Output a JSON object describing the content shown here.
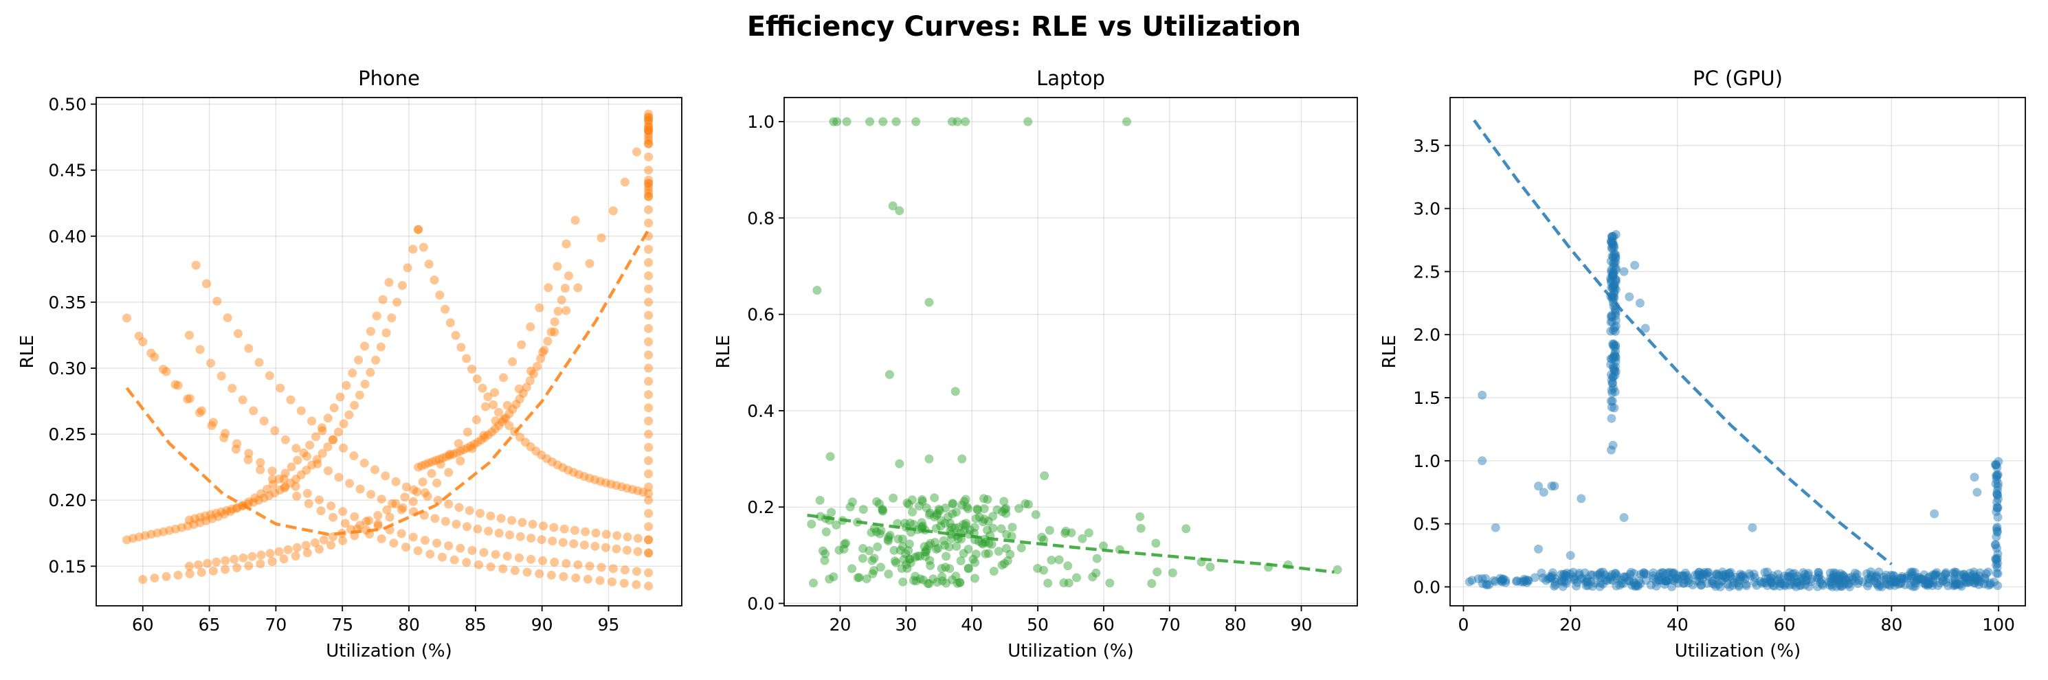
{
  "figure": {
    "title": "Efficiency Curves: RLE vs Utilization"
  },
  "chart_data": [
    {
      "type": "scatter",
      "title": "Phone",
      "xlabel": "Utilization (%)",
      "ylabel": "RLE",
      "xlim": [
        56.5,
        100.5
      ],
      "ylim": [
        0.12,
        0.505
      ],
      "xticks": [
        60,
        65,
        70,
        75,
        80,
        85,
        90,
        95
      ],
      "yticks": [
        0.15,
        0.2,
        0.25,
        0.3,
        0.35,
        0.4,
        0.45,
        0.5
      ],
      "ytick_decimals": 2,
      "grid": true,
      "color": "#ff7f0e",
      "point_alpha": 0.45,
      "series": [
        {
          "kind": "arc-families",
          "arcs": [
            {
              "x0": 58.8,
              "x1": 98.0,
              "ymax": 0.338,
              "ymin": 0.135
            },
            {
              "x0": 60.0,
              "x1": 98.0,
              "ymax": 0.32,
              "ymin": 0.145
            },
            {
              "x0": 63.5,
              "x1": 98.0,
              "ymax": 0.325,
              "ymin": 0.16
            },
            {
              "x0": 64.0,
              "x1": 98.0,
              "ymax": 0.378,
              "ymin": 0.17
            },
            {
              "x0": 78.5,
              "x1": 58.8,
              "ymax": 0.365,
              "ymin": 0.17
            },
            {
              "x0": 80.7,
              "x1": 63.5,
              "ymax": 0.405,
              "ymin": 0.185
            },
            {
              "x0": 80.7,
              "x1": 98.0,
              "ymax": 0.405,
              "ymin": 0.205
            },
            {
              "x0": 92.5,
              "x1": 63.5,
              "ymax": 0.412,
              "ymin": 0.15
            },
            {
              "x0": 92.0,
              "x1": 80.7,
              "ymax": 0.37,
              "ymin": 0.225
            },
            {
              "x0": 98.0,
              "x1": 60.0,
              "ymax": 0.488,
              "ymin": 0.14
            }
          ],
          "vertical_cluster": {
            "x": 98.0,
            "y_min": 0.16,
            "y_max": 0.49,
            "dense": [
              0.43,
              0.47,
              0.48
            ]
          }
        },
        {
          "kind": "fit",
          "style": "dashed",
          "x": [
            58.8,
            62,
            66,
            70,
            74,
            78,
            82,
            86,
            90,
            94,
            98
          ],
          "y": [
            0.285,
            0.243,
            0.205,
            0.182,
            0.174,
            0.178,
            0.196,
            0.228,
            0.275,
            0.335,
            0.405
          ]
        }
      ]
    },
    {
      "type": "scatter",
      "title": "Laptop",
      "xlabel": "Utilization (%)",
      "ylabel": "RLE",
      "xlim": [
        11.5,
        98.5
      ],
      "ylim": [
        -0.005,
        1.05
      ],
      "xticks": [
        20,
        30,
        40,
        50,
        60,
        70,
        80,
        90
      ],
      "yticks": [
        0.0,
        0.2,
        0.4,
        0.6,
        0.8,
        1.0
      ],
      "ytick_decimals": 1,
      "grid": true,
      "color": "#2ca02c",
      "point_alpha": 0.45,
      "series": [
        {
          "kind": "points",
          "outliers": [
            [
              19,
              1.0
            ],
            [
              19.5,
              1.0
            ],
            [
              21,
              1.0
            ],
            [
              24.5,
              1.0
            ],
            [
              26.5,
              1.0
            ],
            [
              28.5,
              1.0
            ],
            [
              31.5,
              1.0
            ],
            [
              37,
              1.0
            ],
            [
              37.8,
              1.0
            ],
            [
              39,
              1.0
            ],
            [
              48.5,
              1.0
            ],
            [
              63.5,
              1.0
            ],
            [
              28,
              0.825
            ],
            [
              29,
              0.815
            ],
            [
              16.5,
              0.65
            ],
            [
              33.5,
              0.625
            ],
            [
              27.5,
              0.475
            ],
            [
              37.5,
              0.44
            ],
            [
              18.5,
              0.305
            ],
            [
              29,
              0.29
            ],
            [
              33.5,
              0.3
            ],
            [
              38.5,
              0.3
            ],
            [
              51,
              0.265
            ],
            [
              65.5,
              0.18
            ],
            [
              72.5,
              0.155
            ],
            [
              85,
              0.075
            ],
            [
              88,
              0.08
            ],
            [
              95.5,
              0.07
            ]
          ],
          "cloud": {
            "x_min": 15,
            "x_max": 80,
            "x_center": 30,
            "y_min": 0.04,
            "y_max": 0.22
          }
        },
        {
          "kind": "fit",
          "style": "dashed",
          "x": [
            15,
            25,
            35,
            45,
            55,
            65,
            75,
            85,
            95
          ],
          "y": [
            0.183,
            0.165,
            0.147,
            0.131,
            0.117,
            0.104,
            0.092,
            0.081,
            0.065
          ]
        }
      ]
    },
    {
      "type": "scatter",
      "title": "PC (GPU)",
      "xlabel": "Utilization (%)",
      "ylabel": "RLE",
      "xlim": [
        -2.5,
        105
      ],
      "ylim": [
        -0.15,
        3.88
      ],
      "xticks": [
        0,
        20,
        40,
        60,
        80,
        100
      ],
      "yticks": [
        0.0,
        0.5,
        1.0,
        1.5,
        2.0,
        2.5,
        3.0,
        3.5
      ],
      "ytick_decimals": 1,
      "grid": true,
      "color": "#1f77b4",
      "point_alpha": 0.45,
      "series": [
        {
          "kind": "points",
          "outliers": [
            [
              3.5,
              1.52
            ],
            [
              3.5,
              1.0
            ],
            [
              6,
              0.47
            ],
            [
              14,
              0.8
            ],
            [
              15,
              0.75
            ],
            [
              16.5,
              0.8
            ],
            [
              17,
              0.8
            ],
            [
              22,
              0.7
            ],
            [
              30,
              2.5
            ],
            [
              31,
              2.3
            ],
            [
              32,
              2.55
            ],
            [
              33,
              2.25
            ],
            [
              34,
              2.05
            ],
            [
              30,
              0.55
            ],
            [
              54,
              0.47
            ],
            [
              88,
              0.58
            ],
            [
              95.5,
              0.87
            ],
            [
              96,
              0.75
            ],
            [
              14,
              0.3
            ],
            [
              20,
              0.25
            ]
          ],
          "vertical_cluster": {
            "x": 28,
            "y_min": 0.9,
            "y_max": 2.8
          },
          "right_cluster": {
            "x": 100,
            "y_min": 0.1,
            "y_max": 1.0
          },
          "baseline": {
            "x_min": 1,
            "x_max": 100,
            "y_min": 0.0,
            "y_max": 0.2
          }
        },
        {
          "kind": "fit",
          "style": "dashed",
          "x": [
            2,
            10,
            20,
            30,
            40,
            50,
            60,
            70,
            80
          ],
          "y": [
            3.7,
            3.23,
            2.68,
            2.17,
            1.71,
            1.28,
            0.89,
            0.52,
            0.18
          ]
        }
      ]
    }
  ]
}
